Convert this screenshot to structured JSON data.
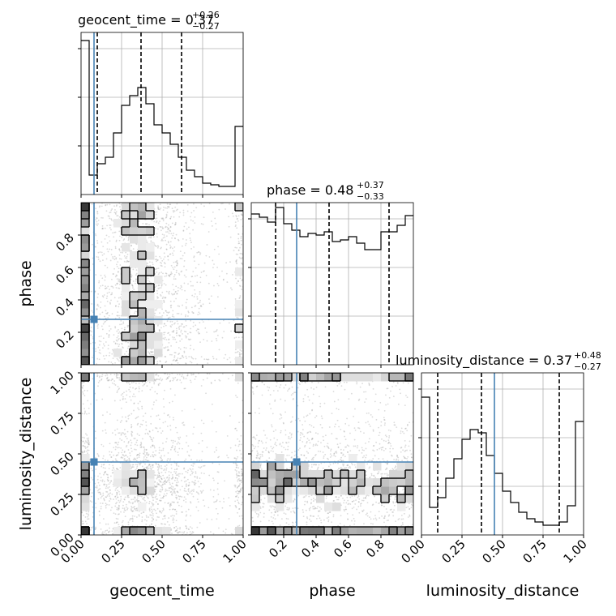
{
  "chart_data": {
    "type": "corner",
    "parameters": [
      "geocent_time",
      "phase",
      "luminosity_distance"
    ],
    "truth": {
      "geocent_time": 0.08,
      "phase": 0.28,
      "luminosity_distance": 0.45
    },
    "truth_color": "#4682b4",
    "grid": true,
    "diagonals": [
      {
        "param": "geocent_time",
        "title_prefix": "geocent_time = ",
        "median": "0.37",
        "plus": "+0.26",
        "minus": "−0.27",
        "quantiles": [
          0.1,
          0.37,
          0.62
        ],
        "range": [
          0,
          1
        ],
        "bin_edges": [
          0,
          0.05,
          0.1,
          0.15,
          0.2,
          0.25,
          0.3,
          0.35,
          0.4,
          0.45,
          0.5,
          0.55,
          0.6,
          0.65,
          0.7,
          0.75,
          0.8,
          0.85,
          0.9,
          0.95,
          1.0
        ],
        "counts": [
          0.95,
          0.12,
          0.19,
          0.23,
          0.38,
          0.55,
          0.61,
          0.66,
          0.56,
          0.43,
          0.38,
          0.31,
          0.23,
          0.15,
          0.11,
          0.07,
          0.06,
          0.05,
          0.05,
          0.42
        ],
        "ylim": [
          0,
          1
        ]
      },
      {
        "param": "phase",
        "title_prefix": "phase = ",
        "median": "0.48",
        "plus": "+0.37",
        "minus": "−0.33",
        "quantiles": [
          0.15,
          0.48,
          0.85
        ],
        "range": [
          0,
          1
        ],
        "bin_edges": [
          0,
          0.05,
          0.1,
          0.15,
          0.2,
          0.25,
          0.3,
          0.35,
          0.4,
          0.45,
          0.5,
          0.55,
          0.6,
          0.65,
          0.7,
          0.75,
          0.8,
          0.85,
          0.9,
          0.95,
          1.0
        ],
        "counts": [
          0.93,
          0.91,
          0.88,
          0.97,
          0.87,
          0.83,
          0.79,
          0.81,
          0.8,
          0.82,
          0.76,
          0.77,
          0.79,
          0.75,
          0.71,
          0.71,
          0.82,
          0.82,
          0.86,
          0.92
        ],
        "ylim": [
          0,
          1
        ]
      },
      {
        "param": "luminosity_distance",
        "title_prefix": "luminosity_distance = ",
        "median": "0.37",
        "plus": "+0.48",
        "minus": "−0.27",
        "quantiles": [
          0.1,
          0.37,
          0.85
        ],
        "range": [
          0,
          1
        ],
        "bin_edges": [
          0,
          0.05,
          0.1,
          0.15,
          0.2,
          0.25,
          0.3,
          0.35,
          0.4,
          0.45,
          0.5,
          0.55,
          0.6,
          0.65,
          0.7,
          0.75,
          0.8,
          0.85,
          0.9,
          0.95,
          1.0
        ],
        "counts": [
          0.85,
          0.17,
          0.23,
          0.35,
          0.47,
          0.59,
          0.65,
          0.63,
          0.49,
          0.38,
          0.27,
          0.2,
          0.14,
          0.1,
          0.08,
          0.06,
          0.06,
          0.08,
          0.18,
          0.7
        ],
        "ylim": [
          0,
          1
        ]
      }
    ],
    "contour_panels": [
      {
        "x": "geocent_time",
        "y": "phase",
        "xlim": [
          0,
          1
        ],
        "ylim": [
          0.0,
          1.0
        ]
      },
      {
        "x": "geocent_time",
        "y": "luminosity_distance",
        "xlim": [
          0,
          1
        ],
        "ylim": [
          0,
          1
        ]
      },
      {
        "x": "phase",
        "y": "luminosity_distance",
        "xlim": [
          0,
          1
        ],
        "ylim": [
          0,
          1
        ]
      }
    ],
    "axes": {
      "geocent_time": {
        "ticks": [
          "0.00",
          "0.25",
          "0.50",
          "0.75",
          "1.00"
        ],
        "tick_values": [
          0,
          0.25,
          0.5,
          0.75,
          1.0
        ],
        "label": "geocent_time"
      },
      "phase": {
        "ticks": [
          "0.2",
          "0.4",
          "0.6",
          "0.8"
        ],
        "tick_values": [
          0.2,
          0.4,
          0.6,
          0.8
        ],
        "label": "phase"
      },
      "luminosity_distance": {
        "ticks": [
          "0.00",
          "0.25",
          "0.50",
          "0.75",
          "1.00"
        ],
        "tick_values": [
          0,
          0.25,
          0.5,
          0.75,
          1.0
        ],
        "label": "luminosity_distance"
      }
    }
  }
}
